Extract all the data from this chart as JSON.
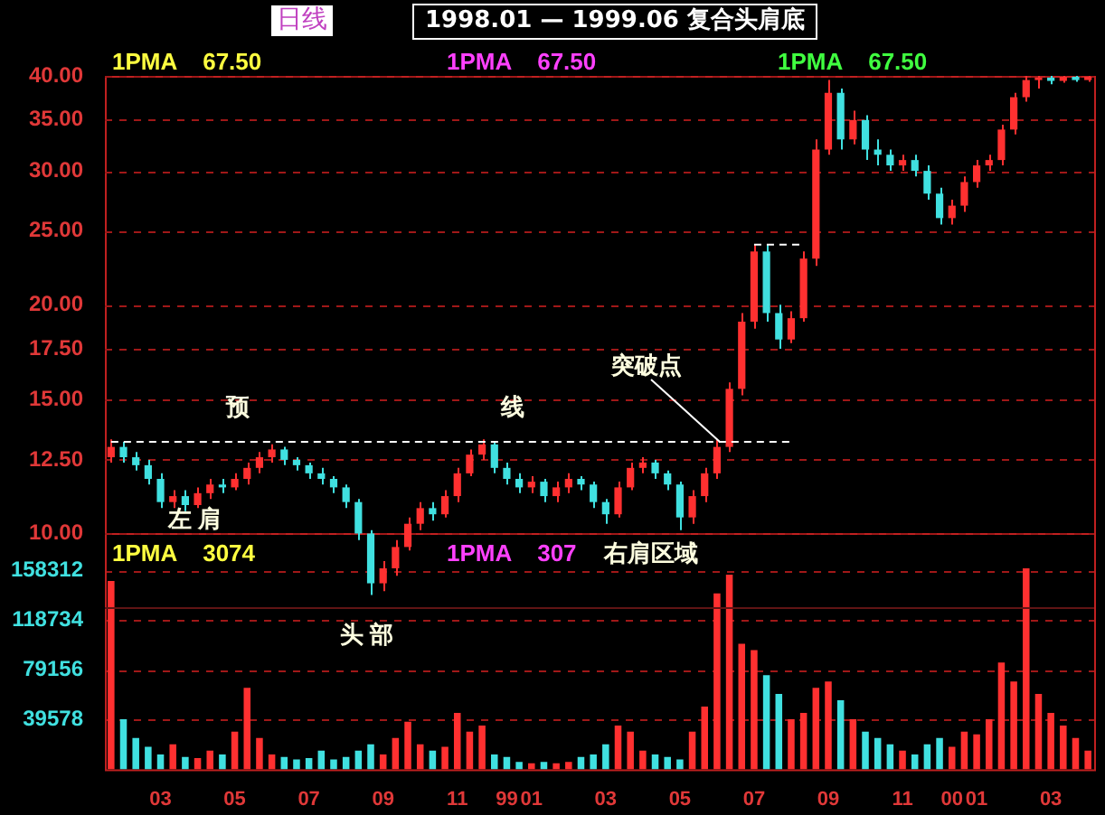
{
  "chart_data": [
    {
      "type": "candlestick",
      "title": "1998.01 — 1999.06 复合头肩底",
      "subtitle": "日线",
      "log": "y",
      "grid": "y",
      "tick_labels": "y",
      "categories": [
        null,
        null,
        null,
        null,
        "03",
        null,
        null,
        null,
        null,
        null,
        "05",
        null,
        null,
        null,
        null,
        null,
        "07",
        null,
        null,
        null,
        null,
        null,
        "09",
        null,
        null,
        null,
        null,
        null,
        "11",
        null,
        null,
        null,
        "99",
        null,
        "01",
        null,
        null,
        null,
        null,
        null,
        "03",
        null,
        null,
        null,
        null,
        null,
        "05",
        null,
        null,
        null,
        null,
        null,
        "07",
        null,
        null,
        null,
        null,
        null,
        "09",
        null,
        null,
        null,
        null,
        null,
        "11",
        null,
        null,
        null,
        "00",
        null,
        "01",
        null,
        null,
        null,
        null,
        null,
        "03",
        null,
        null,
        null
      ],
      "ylim": [
        8,
        40
      ],
      "yticks": [
        {
          "value": 10,
          "label": "10.00"
        },
        {
          "value": 12.5,
          "label": "12.50"
        },
        {
          "value": 15,
          "label": "15.00"
        },
        {
          "value": 17.5,
          "label": "17.50"
        },
        {
          "value": 20,
          "label": "20.00"
        },
        {
          "value": 25,
          "label": "25.00"
        },
        {
          "value": 30,
          "label": "30.00"
        },
        {
          "value": 35,
          "label": "35.00"
        },
        {
          "value": 40,
          "label": "40.00"
        }
      ],
      "ohlc": [
        [
          12.6,
          13.3,
          12.4,
          13.0
        ],
        [
          13.0,
          13.2,
          12.4,
          12.6
        ],
        [
          12.6,
          12.8,
          12.1,
          12.3
        ],
        [
          12.3,
          12.5,
          11.6,
          11.8
        ],
        [
          11.8,
          12.0,
          10.8,
          11.0
        ],
        [
          11.0,
          11.4,
          10.8,
          11.2
        ],
        [
          11.2,
          11.4,
          10.7,
          10.9
        ],
        [
          10.9,
          11.5,
          10.8,
          11.3
        ],
        [
          11.3,
          11.8,
          11.1,
          11.6
        ],
        [
          11.6,
          11.8,
          11.3,
          11.5
        ],
        [
          11.5,
          12.0,
          11.4,
          11.8
        ],
        [
          11.8,
          12.4,
          11.6,
          12.2
        ],
        [
          12.2,
          12.8,
          12.0,
          12.6
        ],
        [
          12.6,
          13.1,
          12.4,
          12.9
        ],
        [
          12.9,
          13.0,
          12.3,
          12.5
        ],
        [
          12.5,
          12.6,
          12.1,
          12.3
        ],
        [
          12.3,
          12.4,
          11.8,
          12.0
        ],
        [
          12.0,
          12.2,
          11.6,
          11.8
        ],
        [
          11.8,
          11.9,
          11.3,
          11.5
        ],
        [
          11.5,
          11.6,
          10.8,
          11.0
        ],
        [
          11.0,
          11.1,
          9.8,
          10.0
        ],
        [
          10.0,
          10.1,
          8.3,
          8.6
        ],
        [
          8.6,
          9.2,
          8.4,
          9.0
        ],
        [
          9.0,
          9.8,
          8.8,
          9.6
        ],
        [
          9.6,
          10.5,
          9.5,
          10.3
        ],
        [
          10.3,
          11.0,
          10.1,
          10.8
        ],
        [
          10.8,
          11.0,
          10.4,
          10.6
        ],
        [
          10.6,
          11.4,
          10.5,
          11.2
        ],
        [
          11.2,
          12.2,
          11.0,
          12.0
        ],
        [
          12.0,
          12.9,
          11.9,
          12.7
        ],
        [
          12.7,
          13.3,
          12.5,
          13.1
        ],
        [
          13.1,
          13.2,
          12.0,
          12.2
        ],
        [
          12.2,
          12.4,
          11.6,
          11.8
        ],
        [
          11.8,
          12.0,
          11.3,
          11.5
        ],
        [
          11.5,
          11.9,
          11.3,
          11.7
        ],
        [
          11.7,
          11.8,
          11.0,
          11.2
        ],
        [
          11.2,
          11.7,
          11.0,
          11.5
        ],
        [
          11.5,
          12.0,
          11.3,
          11.8
        ],
        [
          11.8,
          11.9,
          11.4,
          11.6
        ],
        [
          11.6,
          11.7,
          10.8,
          11.0
        ],
        [
          11.0,
          11.1,
          10.3,
          10.6
        ],
        [
          10.6,
          11.7,
          10.5,
          11.5
        ],
        [
          11.5,
          12.4,
          11.4,
          12.2
        ],
        [
          12.2,
          12.6,
          12.0,
          12.4
        ],
        [
          12.4,
          12.5,
          11.8,
          12.0
        ],
        [
          12.0,
          12.1,
          11.4,
          11.6
        ],
        [
          11.6,
          11.7,
          10.1,
          10.5
        ],
        [
          10.5,
          11.4,
          10.3,
          11.2
        ],
        [
          11.2,
          12.2,
          11.0,
          12.0
        ],
        [
          12.0,
          13.3,
          11.8,
          13.0
        ],
        [
          13.0,
          15.8,
          12.8,
          15.5
        ],
        [
          15.5,
          19.5,
          15.2,
          19.0
        ],
        [
          19.0,
          24.0,
          18.6,
          23.5
        ],
        [
          23.5,
          24.0,
          19.0,
          19.5
        ],
        [
          19.5,
          20.0,
          17.5,
          18.0
        ],
        [
          18.0,
          19.6,
          17.8,
          19.2
        ],
        [
          19.2,
          23.5,
          19.0,
          23.0
        ],
        [
          23.0,
          33.0,
          22.5,
          32.0
        ],
        [
          32.0,
          39.5,
          31.5,
          38.0
        ],
        [
          38.0,
          38.5,
          32.0,
          33.0
        ],
        [
          33.0,
          36.0,
          32.5,
          35.0
        ],
        [
          35.0,
          35.5,
          31.0,
          32.0
        ],
        [
          32.0,
          33.0,
          30.5,
          31.5
        ],
        [
          31.5,
          32.0,
          30.0,
          30.5
        ],
        [
          30.5,
          31.5,
          30.0,
          31.0
        ],
        [
          31.0,
          31.5,
          29.5,
          30.0
        ],
        [
          30.0,
          30.5,
          27.5,
          28.0
        ],
        [
          28.0,
          28.5,
          25.5,
          26.0
        ],
        [
          26.0,
          27.5,
          25.5,
          27.0
        ],
        [
          27.0,
          29.5,
          26.5,
          29.0
        ],
        [
          29.0,
          31.0,
          28.5,
          30.5
        ],
        [
          30.5,
          31.5,
          30.0,
          31.0
        ],
        [
          31.0,
          34.5,
          30.5,
          34.0
        ],
        [
          34.0,
          38.0,
          33.5,
          37.5
        ],
        [
          37.5,
          40.0,
          37.0,
          39.5
        ],
        [
          39.5,
          40.0,
          38.5,
          39.8
        ],
        [
          39.8,
          40.0,
          39.0,
          39.4
        ],
        [
          39.4,
          40.0,
          39.2,
          39.9
        ],
        [
          39.9,
          40.0,
          39.3,
          39.5
        ],
        [
          39.5,
          40.0,
          39.3,
          39.9
        ]
      ],
      "series": [
        {
          "type": "line",
          "color": "#ffffff",
          "line_style": "dashed",
          "values": [
            13.2,
            13.2,
            13.2,
            13.2,
            13.2,
            13.2,
            13.2,
            13.2,
            13.2,
            13.2,
            13.2,
            13.2,
            13.2,
            13.2,
            13.2,
            13.2,
            13.2,
            13.2,
            13.2,
            13.2,
            13.2,
            13.2,
            13.2,
            13.2,
            13.2,
            13.2,
            13.2,
            13.2,
            13.2,
            13.2,
            13.2,
            13.2,
            13.2,
            13.2,
            13.2,
            13.2,
            13.2,
            13.2,
            13.2,
            13.2,
            13.2,
            13.2,
            13.2,
            13.2,
            13.2,
            13.2,
            13.2,
            13.2,
            13.2,
            13.2,
            13.2,
            13.2,
            13.2,
            13.2,
            13.2,
            13.2,
            null,
            null,
            null,
            null,
            null,
            null,
            null,
            null,
            null,
            null,
            null,
            null,
            null,
            null,
            null,
            null,
            null,
            null,
            null,
            null,
            null,
            null,
            null,
            null
          ]
        },
        {
          "type": "line",
          "color": "#ffffff",
          "line_style": "dashed",
          "values": [
            null,
            null,
            null,
            null,
            null,
            null,
            null,
            null,
            null,
            null,
            null,
            null,
            null,
            null,
            null,
            null,
            null,
            null,
            null,
            null,
            null,
            null,
            null,
            null,
            null,
            null,
            null,
            null,
            null,
            null,
            null,
            null,
            null,
            null,
            null,
            null,
            null,
            null,
            null,
            null,
            null,
            null,
            null,
            null,
            null,
            null,
            null,
            null,
            null,
            null,
            null,
            null,
            24,
            24,
            24,
            24,
            24,
            null,
            null,
            null,
            null,
            null,
            null,
            null,
            null,
            null,
            null,
            null,
            null,
            null,
            null,
            null,
            null,
            null,
            null,
            null,
            null,
            null,
            null,
            null
          ]
        }
      ],
      "annotations": [
        "1PMA    67.50",
        "1PMA    67.50",
        "1PMA    67.50",
        "预",
        "线",
        "左 肩",
        "头 部",
        "右肩区域",
        {
          "text": "突破点",
          "y": 13.2
        }
      ]
    },
    {
      "type": "bar",
      "grid": "y",
      "categories": [
        null,
        null,
        null,
        null,
        "03",
        null,
        null,
        null,
        null,
        null,
        "05",
        null,
        null,
        null,
        null,
        null,
        "07",
        null,
        null,
        null,
        null,
        null,
        "09",
        null,
        null,
        null,
        null,
        null,
        "11",
        null,
        null,
        null,
        "99",
        null,
        "01",
        null,
        null,
        null,
        null,
        null,
        "03",
        null,
        null,
        null,
        null,
        null,
        "05",
        null,
        null,
        null,
        null,
        null,
        "07",
        null,
        null,
        null,
        null,
        null,
        "09",
        null,
        null,
        null,
        null,
        null,
        "11",
        null,
        null,
        null,
        "00",
        null,
        "01",
        null,
        null,
        null,
        null,
        null,
        "03",
        null,
        null,
        null
      ],
      "ylim": [
        0,
        188000
      ],
      "yticks": [
        39578,
        79156,
        118734,
        158312
      ],
      "values": [
        150000,
        40000,
        25000,
        18000,
        12000,
        20000,
        10000,
        9000,
        15000,
        12000,
        30000,
        65000,
        25000,
        12000,
        10000,
        8000,
        9000,
        15000,
        8000,
        10000,
        15000,
        20000,
        12000,
        25000,
        38000,
        20000,
        15000,
        18000,
        45000,
        30000,
        35000,
        12000,
        10000,
        6000,
        5000,
        6000,
        5000,
        6000,
        10000,
        12000,
        20000,
        35000,
        30000,
        15000,
        12000,
        10000,
        8000,
        30000,
        50000,
        140000,
        155000,
        100000,
        95000,
        75000,
        60000,
        40000,
        45000,
        65000,
        70000,
        55000,
        40000,
        30000,
        25000,
        20000,
        15000,
        12000,
        20000,
        25000,
        18000,
        30000,
        28000,
        40000,
        85000,
        70000,
        160000,
        60000,
        45000,
        35000,
        25000,
        15000
      ],
      "colors": [
        "#ff3030",
        "#40e0e0",
        "#40e0e0",
        "#40e0e0",
        "#40e0e0",
        "#ff3030",
        "#40e0e0",
        "#ff3030",
        "#ff3030",
        "#40e0e0",
        "#ff3030",
        "#ff3030",
        "#ff3030",
        "#ff3030",
        "#40e0e0",
        "#40e0e0",
        "#40e0e0",
        "#40e0e0",
        "#40e0e0",
        "#40e0e0",
        "#40e0e0",
        "#40e0e0",
        "#ff3030",
        "#ff3030",
        "#ff3030",
        "#ff3030",
        "#40e0e0",
        "#ff3030",
        "#ff3030",
        "#ff3030",
        "#ff3030",
        "#40e0e0",
        "#40e0e0",
        "#40e0e0",
        "#ff3030",
        "#40e0e0",
        "#ff3030",
        "#ff3030",
        "#40e0e0",
        "#40e0e0",
        "#40e0e0",
        "#ff3030",
        "#ff3030",
        "#ff3030",
        "#40e0e0",
        "#40e0e0",
        "#40e0e0",
        "#ff3030",
        "#ff3030",
        "#ff3030",
        "#ff3030",
        "#ff3030",
        "#ff3030",
        "#40e0e0",
        "#40e0e0",
        "#ff3030",
        "#ff3030",
        "#ff3030",
        "#ff3030",
        "#40e0e0",
        "#ff3030",
        "#40e0e0",
        "#40e0e0",
        "#40e0e0",
        "#ff3030",
        "#40e0e0",
        "#40e0e0",
        "#40e0e0",
        "#ff3030",
        "#ff3030",
        "#ff3030",
        "#ff3030",
        "#ff3030",
        "#ff3030",
        "#ff3030",
        "#ff3030",
        "#ff3030",
        "#ff3030",
        "#ff3030",
        "#ff3030"
      ],
      "annotations": [
        "1PMA    3074",
        "1PMA    307"
      ]
    }
  ]
}
